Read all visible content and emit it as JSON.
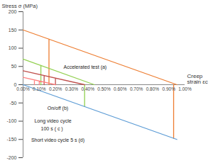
{
  "chart_data": {
    "type": "line",
    "y_label": "Stress σ (MPa)",
    "x_label": "Creep strain εc",
    "xlim": [
      0,
      1
    ],
    "xticks": [
      {
        "value": 0,
        "label": "0.00%"
      },
      {
        "value": 0.1,
        "label": "0.10%"
      },
      {
        "value": 0.2,
        "label": "0.20%"
      },
      {
        "value": 0.3,
        "label": "0.30%"
      },
      {
        "value": 0.4,
        "label": "0.40%"
      },
      {
        "value": 0.5,
        "label": "0.50%"
      },
      {
        "value": 0.6,
        "label": "0.60%"
      },
      {
        "value": 0.7,
        "label": "0.70%"
      },
      {
        "value": 0.8,
        "label": "0.80%"
      },
      {
        "value": 0.9,
        "label": "0.90%"
      },
      {
        "value": 1,
        "label": "1.00%"
      }
    ],
    "ylim": [
      -200,
      200
    ],
    "yticks": [
      -200,
      -150,
      -100,
      -50,
      0,
      50,
      100,
      150,
      200
    ],
    "grid": false,
    "series": [
      {
        "color": "#ed7d31",
        "x": [
          0,
          0.95,
          null,
          0.16,
          0.16,
          null,
          0.93,
          0.93
        ],
        "y": [
          150,
          0,
          null,
          125,
          0,
          null,
          0,
          -147
        ]
      },
      {
        "color": "#92d050",
        "x": [
          0,
          0.44,
          null,
          0.11,
          0.11,
          null,
          0.38,
          0.38
        ],
        "y": [
          70,
          0,
          null,
          53,
          0,
          null,
          0,
          -60
        ]
      },
      {
        "color": "#c0504d",
        "x": [
          0,
          0.38,
          null,
          0.13,
          0.13,
          null,
          0.2,
          0.2
        ],
        "y": [
          38,
          0,
          null,
          25,
          0,
          null,
          18,
          0
        ]
      },
      {
        "color": "#ff8080",
        "x": [
          0,
          0.2,
          null,
          0.07,
          0.07,
          null,
          0.1,
          0.1
        ],
        "y": [
          20,
          0,
          null,
          13,
          0,
          null,
          10,
          0
        ]
      },
      {
        "color": "#5b9bd5",
        "x": [
          0,
          0.95
        ],
        "y": [
          0,
          -150
        ]
      }
    ],
    "annotations": [
      {
        "text": "Accelerated test (a)",
        "x": 0.25,
        "y": 48
      },
      {
        "text": "On/off (b)",
        "x": 0.15,
        "y": -65
      },
      {
        "text": "Long video cycle",
        "x": 0.07,
        "y": -100
      },
      {
        "text": "100 s ( c )",
        "x": 0.11,
        "y": -121
      },
      {
        "text": "Short video cycle 5 s (d)",
        "x": 0.05,
        "y": -152
      }
    ]
  }
}
